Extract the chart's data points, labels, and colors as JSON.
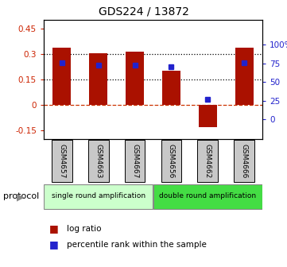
{
  "title": "GDS224 / 13872",
  "samples": [
    "GSM4657",
    "GSM4663",
    "GSM4667",
    "GSM4656",
    "GSM4662",
    "GSM4666"
  ],
  "log_ratios": [
    0.335,
    0.305,
    0.315,
    0.2,
    -0.13,
    0.335
  ],
  "percentile_ranks": [
    76,
    72,
    72,
    70,
    27,
    76
  ],
  "ylim_left": [
    -0.2,
    0.5
  ],
  "ylim_right": [
    -26.67,
    133.33
  ],
  "yticks_left": [
    -0.15,
    0.0,
    0.15,
    0.3,
    0.45
  ],
  "ytick_labels_left": [
    "-0.15",
    "0",
    "0.15",
    "0.3",
    "0.45"
  ],
  "yticks_right": [
    0,
    25,
    50,
    75,
    100
  ],
  "ytick_labels_right": [
    "0",
    "25",
    "50",
    "75",
    "100%"
  ],
  "hlines_dotted": [
    0.15,
    0.3
  ],
  "hline_zero_dashed": 0.0,
  "bar_color": "#aa1100",
  "dot_color": "#2222cc",
  "bar_width": 0.5,
  "group1_color": "#ccffcc",
  "group2_color": "#44dd44",
  "group1_label": "single round amplification",
  "group2_label": "double round amplification",
  "protocol_label": "protocol",
  "legend_log_ratio": "log ratio",
  "legend_percentile": "percentile rank within the sample",
  "title_fontsize": 10,
  "left_tick_color": "#cc2200",
  "right_tick_color": "#2222cc",
  "sample_box_color": "#c8c8c8",
  "bg_color": "#ffffff"
}
